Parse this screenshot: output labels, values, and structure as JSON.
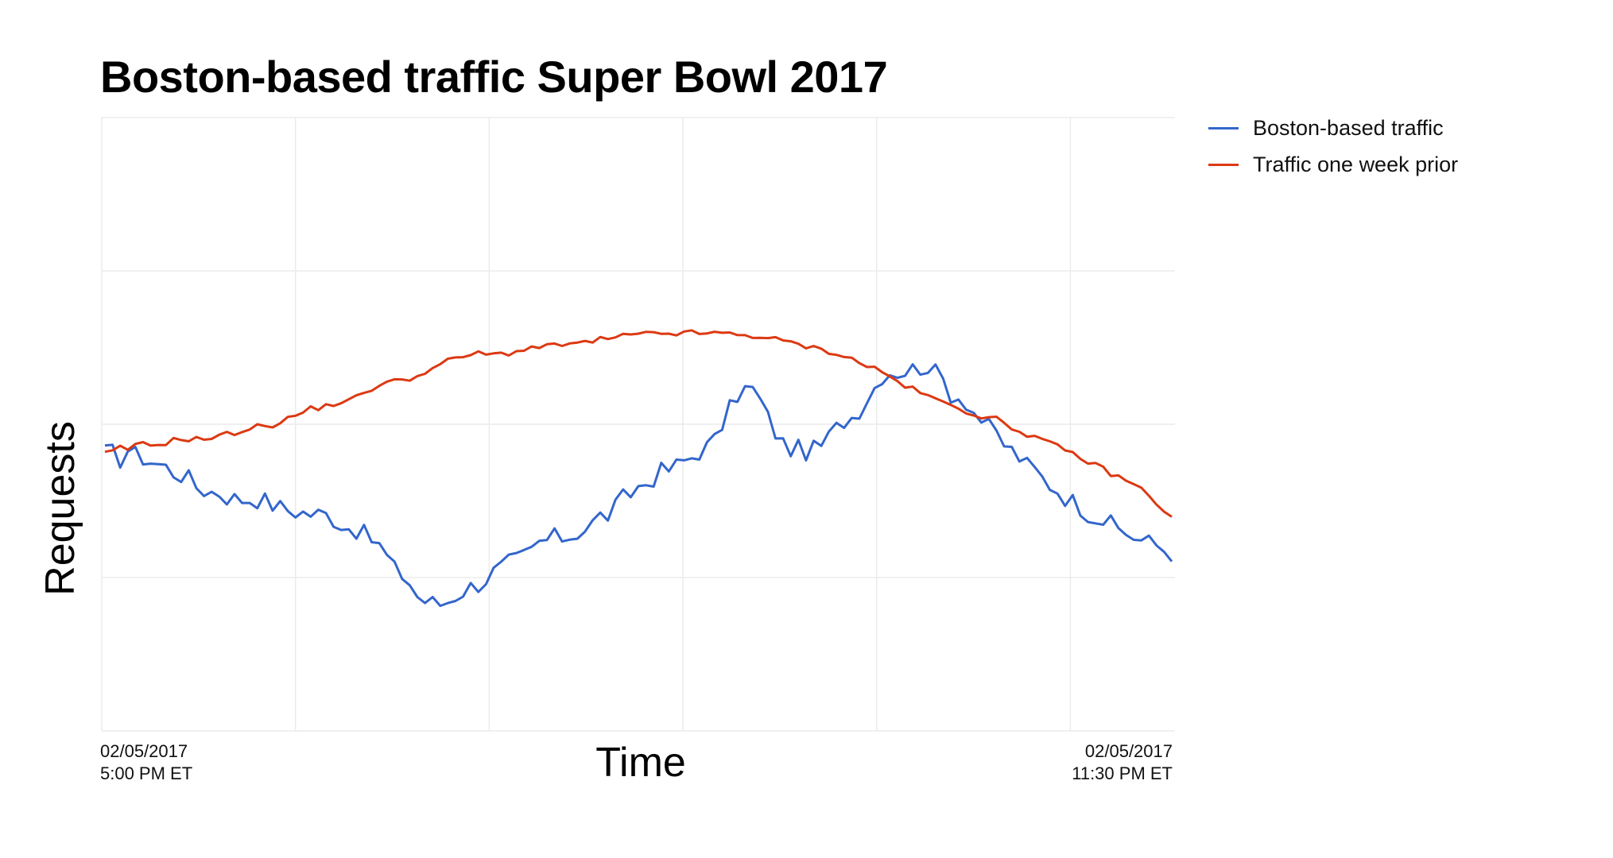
{
  "chart_data": {
    "type": "line",
    "title": "Boston-based traffic Super Bowl 2017",
    "xlabel": "Time",
    "ylabel": "Requests",
    "x_ticks": [
      {
        "line1": "02/05/2017",
        "line2": "5:00 PM ET"
      },
      {
        "line1": "02/05/2017",
        "line2": "11:30 PM ET"
      }
    ],
    "y_ticks_shown": false,
    "ylim": [
      0,
      100
    ],
    "grid": true,
    "legend_position": "top-right",
    "series": [
      {
        "name": "Boston-based traffic",
        "color": "#3366cc",
        "values": [
          45.3,
          45.3,
          44.3,
          45.9,
          45.0,
          44.6,
          44.0,
          43.5,
          43.0,
          42.2,
          41.8,
          41.1,
          39.9,
          39.3,
          39.0,
          38.9,
          38.2,
          37.9,
          37.8,
          37.8,
          37.8,
          37.5,
          36.9,
          36.4,
          36.1,
          35.8,
          35.6,
          35.4,
          35.4,
          35.2,
          34.6,
          33.8,
          33.2,
          32.8,
          32.0,
          31.2,
          30.2,
          28.4,
          26.3,
          25.5,
          24.1,
          22.0,
          21.2,
          20.9,
          20.7,
          21.2,
          22.1,
          22.9,
          23.5,
          24.0,
          24.8,
          25.9,
          26.6,
          27.4,
          27.8,
          28.5,
          29.4,
          30.7,
          31.1,
          31.5,
          31.6,
          31.8,
          32.4,
          33.0,
          33.9,
          35.0,
          35.2,
          36.4,
          37.9,
          38.7,
          39.8,
          40.4,
          41.3,
          42.3,
          42.6,
          43.2,
          44.0,
          44.7,
          45.6,
          46.3,
          47.3,
          50.0,
          52.4,
          54.9,
          55.7,
          55.6,
          53.8,
          51.0,
          48.7,
          46.8,
          46.0,
          45.9,
          45.6,
          45.8,
          46.5,
          47.9,
          49.3,
          50.7,
          51.2,
          52.5,
          54.3,
          56.1,
          58.1,
          58.6,
          58.6,
          58.7,
          59.0,
          59.4,
          59.6,
          58.3,
          57.2,
          55.0,
          54.5,
          53.8,
          52.1,
          50.7,
          49.4,
          48.3,
          46.7,
          45.7,
          44.6,
          43.3,
          42.5,
          41.2,
          40.2,
          39.3,
          38.2,
          37.4,
          36.6,
          35.6,
          35.0,
          34.4,
          33.6,
          32.9,
          32.3,
          31.7,
          31.1,
          30.7,
          30.3,
          29.6,
          29.0
        ]
      },
      {
        "name": "Traffic one week prior",
        "color": "#dc3912",
        "values": [
          45.2,
          45.5,
          46.1,
          46.0,
          46.4,
          46.8,
          46.5,
          46.8,
          47.0,
          47.4,
          47.6,
          47.6,
          47.6,
          47.6,
          47.8,
          48.0,
          48.4,
          48.6,
          49.0,
          49.3,
          49.6,
          49.8,
          49.9,
          50.4,
          50.9,
          51.4,
          52.0,
          52.5,
          52.7,
          53.0,
          53.3,
          53.7,
          53.7,
          54.4,
          55.3,
          55.8,
          56.3,
          56.7,
          57.0,
          57.4,
          57.5,
          57.8,
          58.6,
          59.1,
          59.7,
          60.3,
          60.7,
          61.0,
          61.4,
          61.5,
          61.4,
          61.3,
          61.6,
          61.6,
          61.8,
          62.3,
          62.5,
          62.6,
          62.6,
          62.9,
          63.0,
          63.1,
          63.1,
          63.3,
          63.5,
          63.8,
          63.9,
          64.1,
          64.4,
          64.5,
          64.5,
          64.7,
          64.8,
          64.8,
          64.8,
          64.8,
          64.8,
          64.9,
          64.9,
          64.8,
          64.8,
          64.8,
          64.7,
          64.6,
          64.5,
          64.4,
          64.3,
          64.1,
          63.8,
          63.5,
          63.3,
          63.0,
          62.7,
          62.4,
          62.2,
          61.9,
          61.5,
          61.1,
          60.6,
          60.1,
          59.6,
          59.1,
          58.5,
          57.7,
          57.0,
          56.3,
          55.7,
          55.2,
          54.6,
          54.0,
          53.5,
          53.1,
          52.7,
          52.2,
          51.7,
          51.3,
          51.0,
          50.8,
          50.2,
          49.5,
          48.9,
          48.4,
          47.9,
          47.4,
          46.8,
          46.3,
          45.7,
          45.2,
          44.6,
          43.9,
          43.3,
          42.7,
          42.0,
          41.4,
          40.8,
          40.2,
          39.4,
          38.5,
          37.2,
          35.9,
          34.6
        ]
      }
    ]
  }
}
